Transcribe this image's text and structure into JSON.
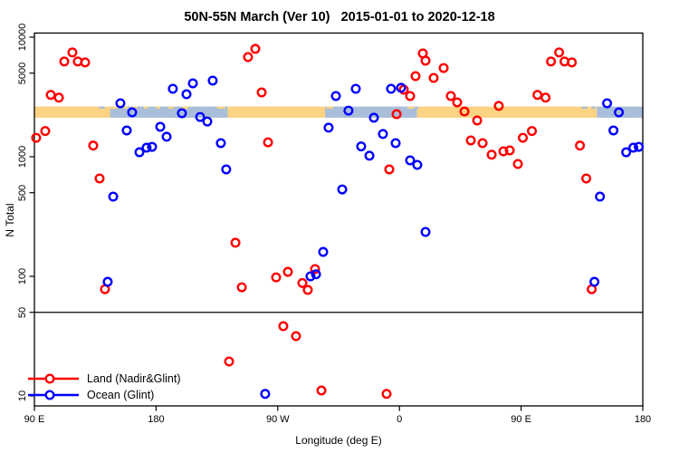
{
  "chart_data": {
    "type": "scatter",
    "title": "50N-55N March (Ver 10)   2015-01-01 to 2020-12-18",
    "xlabel": "Longitude (deg E)",
    "ylabel": "N Total",
    "x_axis": {
      "note": "longitude axis runs 90E eastward through 180, 90W, 0 and repeats 90E-180; stored as continuous deg 90-540",
      "min": 90,
      "max": 540,
      "ticks": [
        {
          "deg": 90,
          "label": "90 E"
        },
        {
          "deg": 180,
          "label": "180"
        },
        {
          "deg": 270,
          "label": "90 W"
        },
        {
          "deg": 360,
          "label": "0"
        },
        {
          "deg": 450,
          "label": "90 E"
        },
        {
          "deg": 540,
          "label": "180"
        }
      ]
    },
    "y_axis": {
      "scale": "log",
      "ticks": [
        "10000",
        "5000",
        "1000",
        "500",
        "100",
        "50",
        "10"
      ],
      "tick_values": [
        10000,
        5000,
        1000,
        500,
        100,
        50,
        10
      ]
    },
    "reference_line_n": 50,
    "map_band": {
      "n_range": [
        2120,
        2630
      ],
      "land_color": "#FBD382",
      "ocean_color": "#A9BED8",
      "segments": [
        {
          "type": "land",
          "from": 90,
          "to": 146
        },
        {
          "type": "ocean",
          "from": 146,
          "to": 233
        },
        {
          "type": "land",
          "from": 233,
          "to": 305
        },
        {
          "type": "ocean",
          "from": 305,
          "to": 373
        },
        {
          "type": "land",
          "from": 373,
          "to": 506
        },
        {
          "type": "ocean",
          "from": 506,
          "to": 540
        }
      ],
      "coast_dashes_land_top": [
        [
          146,
          152
        ],
        [
          156,
          159
        ],
        [
          163,
          166
        ],
        [
          171,
          174
        ],
        [
          180,
          183
        ],
        [
          189,
          193
        ],
        [
          199,
          204
        ],
        [
          225,
          231
        ],
        [
          306,
          311
        ],
        [
          366,
          371
        ]
      ],
      "coast_dashes_ocean_top": [
        [
          138,
          142
        ],
        [
          371,
          374
        ],
        [
          495,
          499
        ],
        [
          502,
          505
        ]
      ]
    },
    "point_format": [
      "longitude_deg_axis",
      "n_total"
    ],
    "series": [
      {
        "name": "Land (Nadir&Glint)",
        "color": "#FF0000",
        "points": [
          [
            118.1,
            7450
          ],
          [
            112.1,
            6260
          ],
          [
            122.1,
            6260
          ],
          [
            127.5,
            6150
          ],
          [
            102.1,
            3290
          ],
          [
            108.1,
            3120
          ],
          [
            98.0,
            1640
          ],
          [
            91.3,
            1440
          ],
          [
            133.5,
            1240
          ],
          [
            138.2,
            658
          ],
          [
            142.2,
            78
          ],
          [
            478.1,
            7450
          ],
          [
            472.1,
            6260
          ],
          [
            482.1,
            6260
          ],
          [
            487.5,
            6150
          ],
          [
            462.1,
            3290
          ],
          [
            468.1,
            3120
          ],
          [
            458.0,
            1640
          ],
          [
            451.3,
            1440
          ],
          [
            493.5,
            1240
          ],
          [
            498.2,
            658
          ],
          [
            502.2,
            78
          ],
          [
            248.0,
            6810
          ],
          [
            253.4,
            7980
          ],
          [
            258.1,
            3450
          ],
          [
            262.8,
            1320
          ],
          [
            238.7,
            191
          ],
          [
            243.4,
            81
          ],
          [
            234.0,
            19.4
          ],
          [
            268.8,
            98
          ],
          [
            277.5,
            109
          ],
          [
            274.1,
            38.3
          ],
          [
            283.5,
            31.6
          ],
          [
            288.2,
            88
          ],
          [
            292.2,
            77
          ],
          [
            297.6,
            115
          ],
          [
            302.3,
            11.1
          ],
          [
            350.5,
            10.4
          ],
          [
            352.5,
            784
          ],
          [
            357.9,
            2270
          ],
          [
            363.2,
            3640
          ],
          [
            367.9,
            3220
          ],
          [
            371.9,
            4720
          ],
          [
            377.3,
            7310
          ],
          [
            379.3,
            6360
          ],
          [
            385.3,
            4560
          ],
          [
            392.7,
            5520
          ],
          [
            398.0,
            3220
          ],
          [
            402.7,
            2850
          ],
          [
            408.1,
            2390
          ],
          [
            417.5,
            2010
          ],
          [
            433.5,
            2660
          ],
          [
            412.8,
            1370
          ],
          [
            421.5,
            1300
          ],
          [
            428.2,
            1040
          ],
          [
            436.9,
            1110
          ],
          [
            441.6,
            1130
          ],
          [
            447.6,
            870
          ]
        ]
      },
      {
        "name": "Ocean (Glint)",
        "color": "#0000FF",
        "points": [
          [
            144.2,
            90
          ],
          [
            148.3,
            464
          ],
          [
            153.6,
            2800
          ],
          [
            162.3,
            2350
          ],
          [
            158.3,
            1660
          ],
          [
            167.7,
            1090
          ],
          [
            173.0,
            1190
          ],
          [
            177.0,
            1210
          ],
          [
            504.2,
            90
          ],
          [
            508.3,
            464
          ],
          [
            513.6,
            2800
          ],
          [
            522.3,
            2350
          ],
          [
            518.3,
            1660
          ],
          [
            527.7,
            1090
          ],
          [
            533.0,
            1190
          ],
          [
            537.0,
            1210
          ],
          [
            183.1,
            1780
          ],
          [
            187.8,
            1470
          ],
          [
            192.4,
            3700
          ],
          [
            202.5,
            3330
          ],
          [
            207.2,
            4110
          ],
          [
            221.9,
            4330
          ],
          [
            199.1,
            2310
          ],
          [
            212.6,
            2150
          ],
          [
            217.9,
            1970
          ],
          [
            227.9,
            1300
          ],
          [
            231.9,
            784
          ],
          [
            260.7,
            10.4
          ],
          [
            294.2,
            100
          ],
          [
            298.3,
            104
          ],
          [
            303.6,
            160
          ],
          [
            317.7,
            533
          ],
          [
            307.6,
            1750
          ],
          [
            313.0,
            3220
          ],
          [
            322.3,
            2430
          ],
          [
            327.7,
            3700
          ],
          [
            331.7,
            1220
          ],
          [
            337.8,
            1020
          ],
          [
            341.1,
            2120
          ],
          [
            347.8,
            1550
          ],
          [
            353.8,
            3700
          ],
          [
            357.2,
            1300
          ],
          [
            361.2,
            3770
          ],
          [
            367.9,
            933
          ],
          [
            373.2,
            855
          ],
          [
            379.3,
            235
          ]
        ]
      }
    ],
    "legend": {
      "position": "bottom-left",
      "entries": [
        "Land (Nadir&Glint)",
        "Ocean (Glint)"
      ]
    }
  }
}
